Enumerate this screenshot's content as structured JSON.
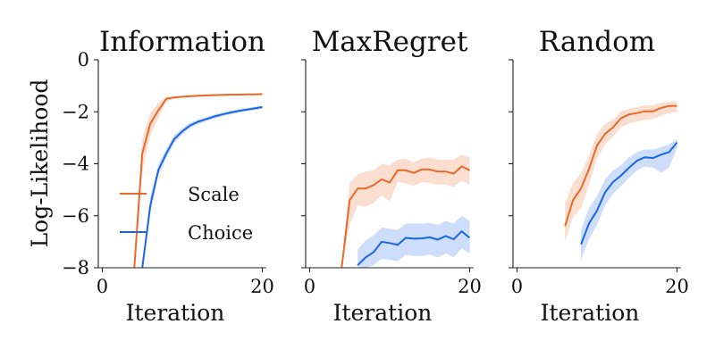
{
  "chart_data": {
    "type": "line",
    "ylabel": "Log-Likelihood",
    "xlabel": "Iteration",
    "xlim": [
      -0.5,
      20.5
    ],
    "ylim": [
      -8,
      0
    ],
    "xticks": [
      0,
      20
    ],
    "yticks": [
      0,
      -2,
      -4,
      -6,
      -8
    ],
    "ytick_labels": [
      "0",
      "−2",
      "−4",
      "−6",
      "−8"
    ],
    "x": [
      0,
      1,
      2,
      3,
      4,
      5,
      6,
      7,
      8,
      9,
      10,
      11,
      12,
      13,
      14,
      15,
      16,
      17,
      18,
      19,
      20
    ],
    "legend": [
      {
        "name": "Scale",
        "color": "#e8692a"
      },
      {
        "name": "Choice",
        "color": "#1a66e6"
      }
    ],
    "panels": [
      {
        "title": "Information",
        "series": [
          {
            "name": "Scale",
            "values": [
              null,
              null,
              null,
              null,
              -8.0,
              -3.6,
              -2.45,
              -1.95,
              -1.5,
              -1.45,
              -1.42,
              -1.4,
              -1.38,
              -1.37,
              -1.36,
              -1.35,
              -1.34,
              -1.34,
              -1.33,
              -1.33,
              -1.32
            ],
            "lower": [
              null,
              null,
              null,
              null,
              -8.0,
              -4.3,
              -2.9,
              -2.25,
              -1.6,
              -1.5,
              -1.46,
              -1.44,
              -1.42,
              -1.41,
              -1.4,
              -1.39,
              -1.38,
              -1.38,
              -1.37,
              -1.37,
              -1.36
            ],
            "upper": [
              null,
              null,
              null,
              null,
              -8.0,
              -3.0,
              -2.05,
              -1.65,
              -1.42,
              -1.4,
              -1.38,
              -1.36,
              -1.35,
              -1.34,
              -1.33,
              -1.32,
              -1.31,
              -1.31,
              -1.3,
              -1.3,
              -1.29
            ]
          },
          {
            "name": "Choice",
            "values": [
              null,
              null,
              null,
              null,
              null,
              -8.0,
              -5.6,
              -4.25,
              -3.6,
              -3.05,
              -2.75,
              -2.52,
              -2.38,
              -2.28,
              -2.18,
              -2.1,
              -2.03,
              -1.97,
              -1.92,
              -1.87,
              -1.82
            ],
            "lower": [
              null,
              null,
              null,
              null,
              null,
              -8.0,
              -5.9,
              -4.45,
              -3.78,
              -3.2,
              -2.88,
              -2.62,
              -2.47,
              -2.36,
              -2.26,
              -2.17,
              -2.1,
              -2.04,
              -1.98,
              -1.93,
              -1.88
            ],
            "upper": [
              null,
              null,
              null,
              null,
              null,
              -8.0,
              -5.3,
              -4.05,
              -3.42,
              -2.9,
              -2.62,
              -2.42,
              -2.29,
              -2.2,
              -2.1,
              -2.03,
              -1.96,
              -1.9,
              -1.86,
              -1.81,
              -1.76
            ]
          }
        ]
      },
      {
        "title": "MaxRegret",
        "series": [
          {
            "name": "Scale",
            "values": [
              null,
              null,
              null,
              null,
              -8.0,
              -5.4,
              -4.95,
              -4.95,
              -4.82,
              -4.6,
              -4.72,
              -4.25,
              -4.25,
              -4.35,
              -4.22,
              -4.22,
              -4.3,
              -4.3,
              -4.38,
              -4.1,
              -4.25
            ],
            "lower": [
              null,
              null,
              null,
              null,
              -8.0,
              -6.3,
              -5.6,
              -5.65,
              -5.5,
              -5.2,
              -5.45,
              -4.7,
              -4.75,
              -4.85,
              -4.7,
              -4.75,
              -4.8,
              -4.8,
              -4.9,
              -4.65,
              -4.8
            ],
            "upper": [
              null,
              null,
              null,
              null,
              -8.0,
              -4.75,
              -4.4,
              -4.3,
              -4.25,
              -4.0,
              -4.05,
              -3.85,
              -3.8,
              -3.95,
              -3.8,
              -3.75,
              -3.85,
              -3.85,
              -3.85,
              -3.65,
              -3.75
            ]
          },
          {
            "name": "Choice",
            "values": [
              null,
              null,
              null,
              null,
              null,
              null,
              -7.9,
              -7.6,
              -7.4,
              -7.0,
              -7.05,
              -7.12,
              -6.85,
              -6.88,
              -6.87,
              -6.83,
              -6.92,
              -6.78,
              -6.9,
              -6.6,
              -6.85
            ],
            "lower": [
              null,
              null,
              null,
              null,
              null,
              null,
              -8.0,
              -8.0,
              -7.9,
              -7.65,
              -7.7,
              -7.75,
              -7.5,
              -7.55,
              -7.55,
              -7.5,
              -7.6,
              -7.45,
              -7.6,
              -7.25,
              -7.45
            ],
            "upper": [
              null,
              null,
              null,
              null,
              null,
              null,
              -7.3,
              -6.95,
              -6.75,
              -6.45,
              -6.5,
              -6.55,
              -6.3,
              -6.3,
              -6.3,
              -6.28,
              -6.35,
              -6.2,
              -6.3,
              -6.0,
              -6.2
            ]
          }
        ]
      },
      {
        "title": "Random",
        "series": [
          {
            "name": "Scale",
            "values": [
              null,
              null,
              null,
              null,
              null,
              null,
              -6.4,
              -5.4,
              -4.95,
              -4.2,
              -3.3,
              -2.85,
              -2.6,
              -2.25,
              -2.1,
              -2.05,
              -1.98,
              -1.98,
              -1.85,
              -1.78,
              -1.77
            ],
            "lower": [
              null,
              null,
              null,
              null,
              null,
              null,
              -7.0,
              -6.05,
              -5.7,
              -4.8,
              -3.8,
              -3.25,
              -2.95,
              -2.6,
              -2.45,
              -2.38,
              -2.3,
              -2.28,
              -2.15,
              -2.05,
              -2.0
            ],
            "upper": [
              null,
              null,
              null,
              null,
              null,
              null,
              -5.5,
              -4.75,
              -4.35,
              -3.7,
              -2.85,
              -2.45,
              -2.3,
              -1.98,
              -1.88,
              -1.82,
              -1.75,
              -1.74,
              -1.65,
              -1.6,
              -1.6
            ]
          },
          {
            "name": "Choice",
            "values": [
              null,
              null,
              null,
              null,
              null,
              null,
              null,
              null,
              -7.1,
              -6.3,
              -5.8,
              -5.1,
              -4.7,
              -4.45,
              -4.15,
              -3.88,
              -3.75,
              -3.78,
              -3.65,
              -3.55,
              -3.18
            ],
            "lower": [
              null,
              null,
              null,
              null,
              null,
              null,
              null,
              null,
              -7.7,
              -6.9,
              -6.35,
              -5.6,
              -5.15,
              -4.85,
              -4.55,
              -4.25,
              -4.1,
              -4.15,
              -4.35,
              -4.15,
              -3.4
            ],
            "upper": [
              null,
              null,
              null,
              null,
              null,
              null,
              null,
              null,
              -6.55,
              -5.7,
              -5.25,
              -4.6,
              -4.25,
              -4.05,
              -3.75,
              -3.55,
              -3.45,
              -3.45,
              -3.35,
              -3.25,
              -3.05
            ]
          }
        ]
      }
    ]
  }
}
